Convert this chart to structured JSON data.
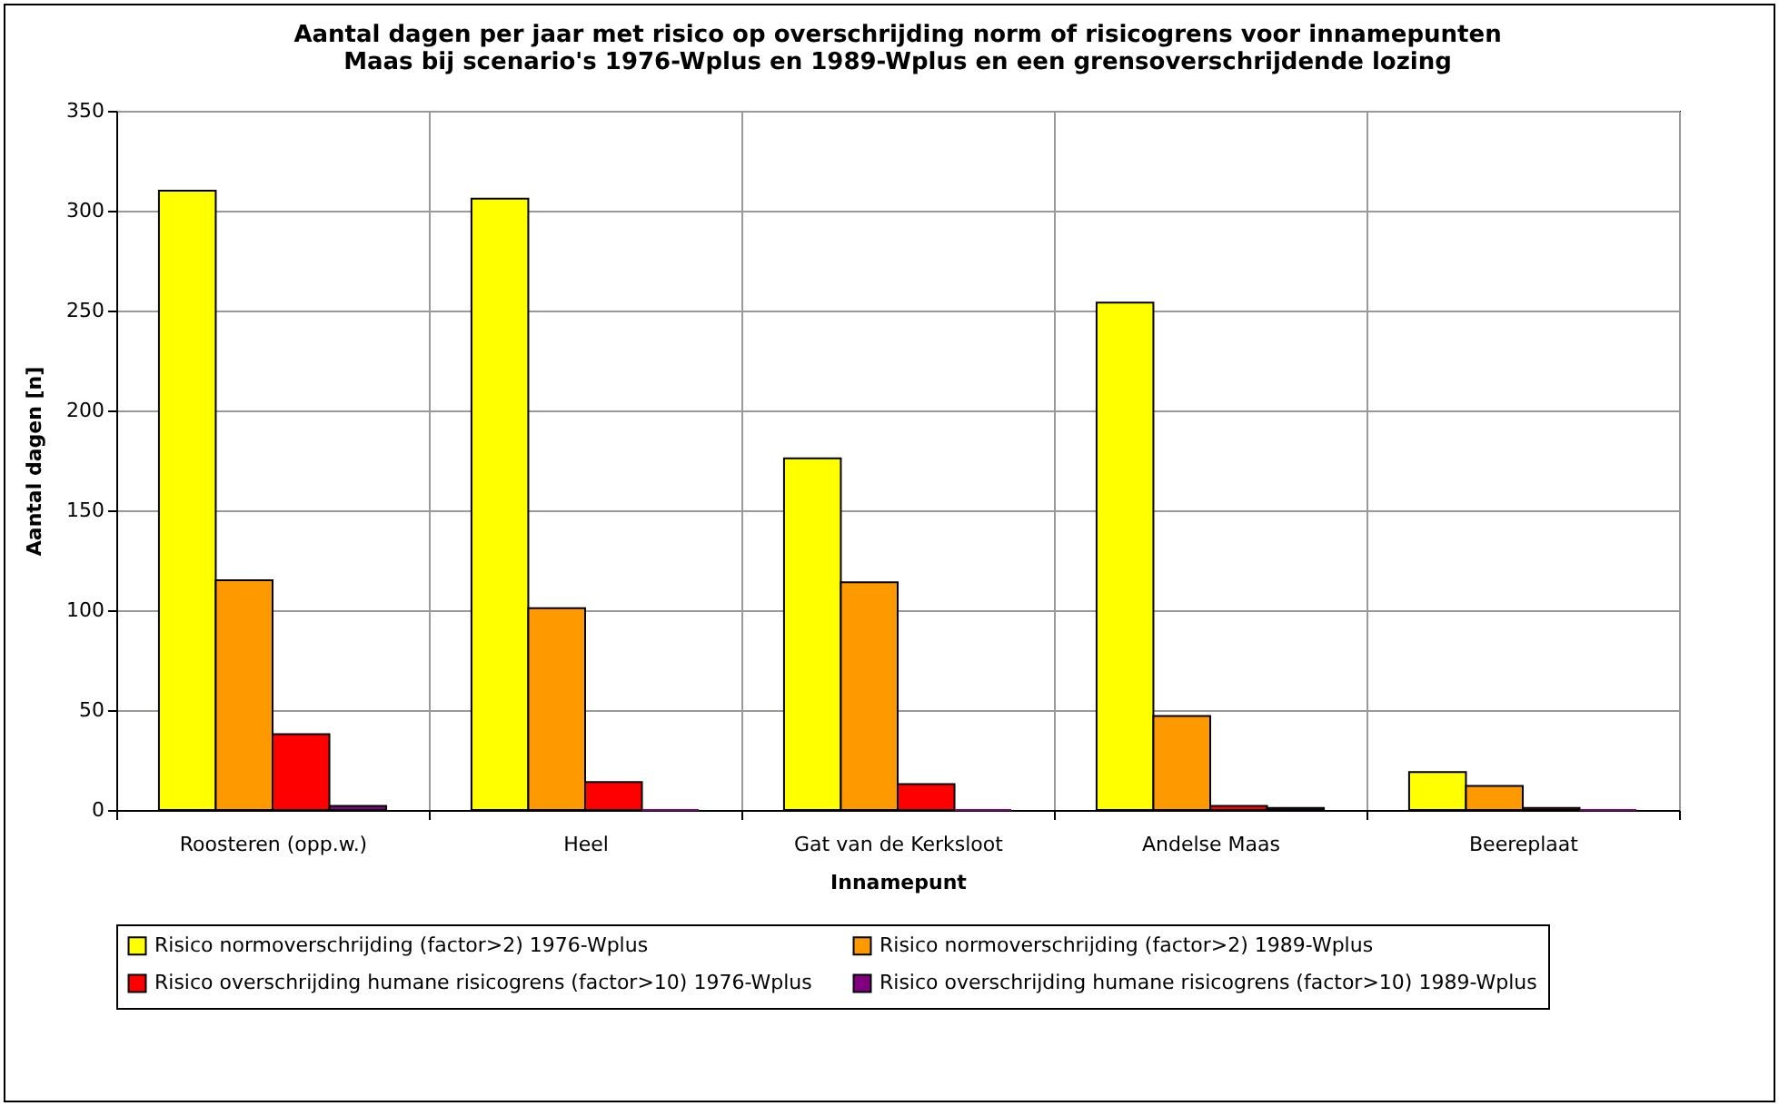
{
  "chart_data": {
    "type": "bar",
    "title": "Aantal dagen per jaar met risico op overschrijding norm of risicogrens voor innamepunten\nMaas bij scenario's 1976-Wplus en 1989-Wplus en een grensoverschrijdende lozing",
    "xlabel": "Innamepunt",
    "ylabel": "Aantal dagen [n]",
    "categories": [
      "Roosteren (opp.w.)",
      "Heel",
      "Gat van de Kerksloot",
      "Andelse Maas",
      "Beereplaat"
    ],
    "series": [
      {
        "name": "Risico normoverschrijding (factor>2) 1976-Wplus",
        "color": "#ffff00",
        "values": [
          310,
          306,
          176,
          254,
          19
        ]
      },
      {
        "name": "Risico normoverschrijding (factor>2) 1989-Wplus",
        "color": "#ff9900",
        "values": [
          115,
          101,
          114,
          47,
          12
        ]
      },
      {
        "name": "Risico overschrijding humane risicogrens (factor>10) 1976-Wplus",
        "color": "#ff0000",
        "values": [
          38,
          14,
          13,
          2,
          1
        ]
      },
      {
        "name": "Risico overschrijding humane risicogrens (factor>10) 1989-Wplus",
        "color": "#800080",
        "values": [
          2,
          0,
          0,
          1,
          0
        ]
      }
    ],
    "ylim": [
      0,
      350
    ],
    "yticks": [
      0,
      50,
      100,
      150,
      200,
      250,
      300,
      350
    ],
    "grid": true,
    "legend": "bottom"
  }
}
